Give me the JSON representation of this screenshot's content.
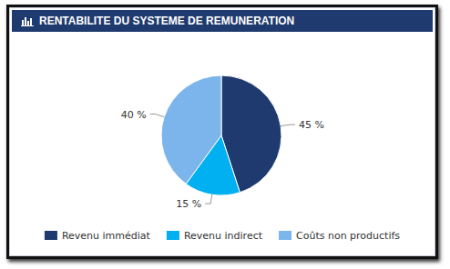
{
  "chart_data": {
    "type": "pie",
    "title": "RENTABILITE DU SYSTEME DE REMUNERATION",
    "categories": [
      "Revenu immédiat",
      "Revenu indirect",
      "Coûts non productifs"
    ],
    "values": [
      45,
      15,
      40
    ],
    "value_labels": [
      "45 %",
      "15 %",
      "40 %"
    ],
    "colors": [
      "#1f3a6e",
      "#00b0f0",
      "#7cb5ec"
    ],
    "data_labels": true,
    "legend": "bottom"
  }
}
